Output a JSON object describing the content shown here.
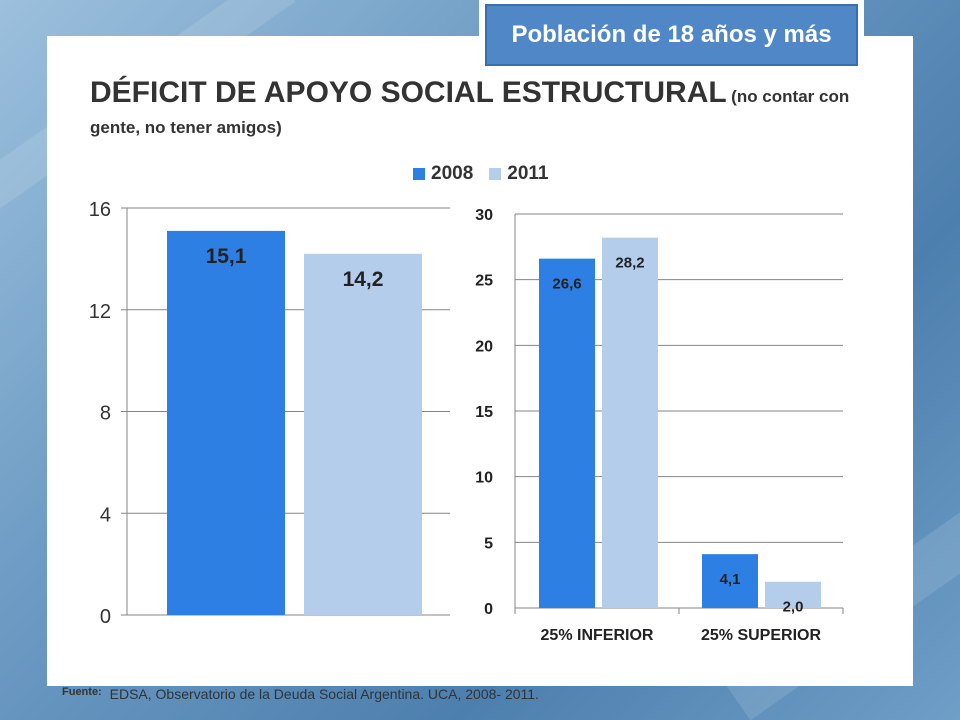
{
  "badge": "Población de 18 años y más",
  "title": {
    "main": "DÉFICIT DE APOYO SOCIAL ESTRUCTURAL",
    "sub_a": "(no contar con",
    "sub_b": "gente, no tener amigos)"
  },
  "legend": [
    {
      "label": "2008",
      "color": "#2e7fe3"
    },
    {
      "label": "2011",
      "color": "#b3cdeb"
    }
  ],
  "source": {
    "label": "Fuente:",
    "text": "EDSA, Observatorio de la Deuda Social Argentina. UCA, 2008- 2011."
  },
  "chart_data": [
    {
      "type": "bar",
      "series": [
        {
          "name": "2008",
          "values": [
            15.1
          ],
          "labels": [
            "15,1"
          ]
        },
        {
          "name": "2011",
          "values": [
            14.2
          ],
          "labels": [
            "14,2"
          ]
        }
      ],
      "categories": [
        ""
      ],
      "ylim": [
        0,
        16
      ],
      "yticks": [
        "0",
        "4",
        "8",
        "12",
        "16"
      ],
      "grid": true
    },
    {
      "type": "bar",
      "categories": [
        "25% INFERIOR",
        "25% SUPERIOR"
      ],
      "series": [
        {
          "name": "2008",
          "values": [
            26.6,
            4.1
          ],
          "labels": [
            "26,6",
            "4,1"
          ]
        },
        {
          "name": "2011",
          "values": [
            28.2,
            2.0
          ],
          "labels": [
            "28,2",
            "2,0"
          ]
        }
      ],
      "ylim": [
        0,
        30
      ],
      "yticks": [
        "0",
        "5",
        "10",
        "15",
        "20",
        "25",
        "30"
      ],
      "grid": true
    }
  ]
}
